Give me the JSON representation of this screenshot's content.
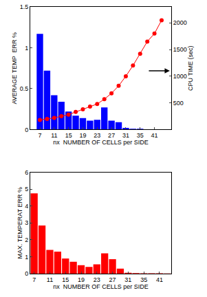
{
  "chart_data": [
    {
      "type": "bar",
      "x_label": "nx  NUMBER OF CELLS per SIDE",
      "y_label": "AVERAGE TEMP  ERR %",
      "y2_label": "CPU TIME (sec)",
      "categories": [
        "7",
        null,
        "11",
        null,
        "15",
        null,
        "19",
        null,
        "23",
        null,
        "27",
        null,
        "31",
        null,
        "35",
        null,
        "41",
        null
      ],
      "series": [
        {
          "type": "bar",
          "color": "#0000ff",
          "values": [
            1.17,
            0.72,
            0.42,
            0.34,
            0.22,
            0.17,
            0.14,
            0.11,
            0.12,
            0.27,
            0.11,
            0.09,
            0.02,
            0.01,
            0.01,
            0.005,
            0.005,
            0.003
          ]
        },
        {
          "type": "line",
          "axis": "y2",
          "color": "#ff0000",
          "marker": "circle",
          "values": [
            180,
            200,
            220,
            250,
            280,
            330,
            380,
            430,
            480,
            570,
            680,
            820,
            1000,
            1200,
            1420,
            1650,
            1800,
            2050
          ]
        }
      ],
      "ylim": [
        0,
        1.5
      ],
      "yticks": [
        0,
        0.5,
        1,
        1.5
      ],
      "y2lim": [
        0,
        2300
      ],
      "y2ticks": [
        500,
        1000,
        1500,
        2000
      ]
    },
    {
      "type": "bar",
      "x_label": "nx  NUMBER OF CELLS per SIDE",
      "y_label": "MAX. TEMPERAT ERR %",
      "categories": [
        "7",
        null,
        "11",
        null,
        "15",
        null,
        "19",
        null,
        "23",
        null,
        "27",
        null,
        "31",
        null,
        "35",
        null,
        "41",
        null
      ],
      "color": "#ff0000",
      "values": [
        4.75,
        2.85,
        1.4,
        1.3,
        0.9,
        0.7,
        0.5,
        0.4,
        0.55,
        1.2,
        0.85,
        0.3,
        0.05,
        0.03,
        0.02,
        0.02,
        0.02,
        0.01
      ],
      "ylim": [
        0,
        6
      ],
      "yticks": [
        0,
        1,
        2,
        3,
        4,
        5,
        6
      ]
    }
  ]
}
